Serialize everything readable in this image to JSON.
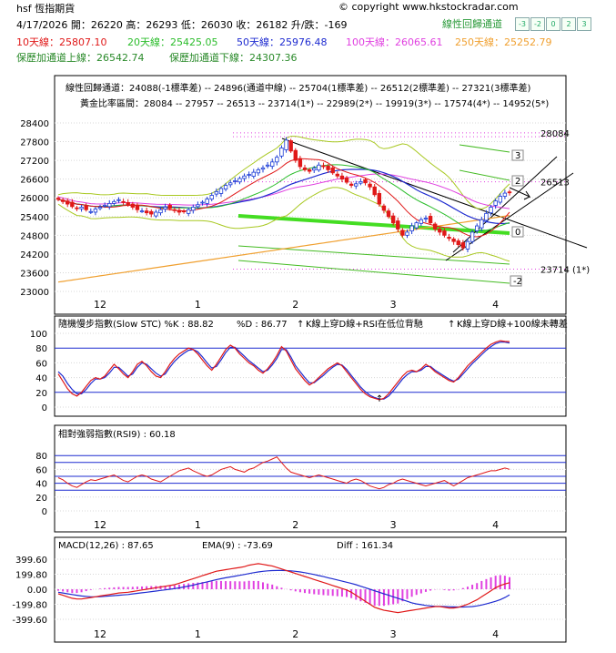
{
  "header": {
    "title": "hsf 恆指期貨",
    "copyright": "© copyright www.hkstockradar.com",
    "channel_label": "線性回歸通道",
    "buttons": [
      "-3",
      "-2",
      "0",
      "2",
      "3"
    ],
    "quote": "4/17/2026 開：26220 高：26293 低：26030 收：26182 升/跌：-169",
    "ma10": "10天線：25807.10",
    "ma20": "20天線：25425.05",
    "ma50": "50天線：25976.48",
    "ma100": "100天線：26065.61",
    "ma250": "250天線：25252.79",
    "upper": "保歷加通道上線：26542.74",
    "lower": "保歷加通道下線：24307.36",
    "regression": "線性回歸通道：24088(-1標準差) -- 24896(通道中線) -- 25704(1標準差) -- 26512(2標準差) -- 27321(3標準差)",
    "golden": "黃金比率區間：28084 -- 27957 -- 26513 -- 23714(1*) -- 22989(2*) -- 19919(3*) -- 17574(4*) -- 14952(5*)"
  },
  "colors": {
    "up": "#1a3bd6",
    "down": "#e01818",
    "ma10": "#e01818",
    "ma20": "#2bbd2b",
    "ma50": "#1e2bd0",
    "ma100": "#e040e0",
    "ma250": "#f0a030",
    "boll": "#a8c820"
  },
  "chart_data": [
    {
      "type": "candlestick",
      "ylim": [
        23000,
        28400
      ],
      "yticks": [
        23000,
        23600,
        24200,
        24800,
        25400,
        26000,
        26600,
        27200,
        27800,
        28400
      ],
      "x_ticks": [
        "12",
        "1",
        "2",
        "3",
        "4"
      ],
      "fib_labels": [
        "28084",
        "26513",
        "23714 (1*)"
      ],
      "channel_labels": [
        "3",
        "2",
        "0",
        "-2"
      ],
      "close": [
        25950,
        25880,
        25800,
        25720,
        25650,
        25700,
        25620,
        25560,
        25640,
        25700,
        25760,
        25820,
        25880,
        25940,
        25870,
        25780,
        25700,
        25620,
        25580,
        25520,
        25480,
        25540,
        25620,
        25700,
        25660,
        25600,
        25540,
        25560,
        25620,
        25700,
        25780,
        25860,
        25960,
        26080,
        26200,
        26300,
        26400,
        26480,
        26550,
        26620,
        26700,
        26750,
        26820,
        26900,
        26960,
        27050,
        27150,
        27300,
        27600,
        27850,
        27500,
        27200,
        27000,
        26900,
        26850,
        26950,
        27050,
        27000,
        26900,
        26800,
        26700,
        26600,
        26500,
        26400,
        26450,
        26520,
        26480,
        26350,
        26100,
        25800,
        25600,
        25400,
        25200,
        25000,
        24800,
        24900,
        25100,
        25200,
        25300,
        25350,
        25200,
        25000,
        24900,
        24800,
        24700,
        24600,
        24500,
        24400,
        24600,
        24900,
        25100,
        25300,
        25500,
        25700,
        25900,
        26050,
        26150,
        26182
      ],
      "indicators": {
        "stc_title": "隨機慢步指數(Slow STC) %K : 88.82",
        "stc_d": "%D : 86.77",
        "stc_note1": "K線上穿D線+RSI在低位背馳",
        "stc_note2": "K線上穿D線+100線未轉差",
        "rsi_title": "相對強弱指數(RSI9) : 60.18",
        "macd_title": "MACD(12,26) : 87.65",
        "ema_title": "EMA(9) : -73.69",
        "diff_title": "Diff : 161.34"
      }
    },
    {
      "type": "line",
      "name": "stc",
      "ylim": [
        0,
        100
      ],
      "yticks": [
        0,
        20,
        40,
        60,
        80,
        100
      ],
      "k": [
        45,
        35,
        25,
        18,
        15,
        20,
        28,
        36,
        40,
        38,
        42,
        50,
        58,
        52,
        45,
        40,
        48,
        58,
        62,
        56,
        48,
        42,
        40,
        48,
        58,
        66,
        72,
        76,
        80,
        78,
        72,
        64,
        56,
        50,
        58,
        68,
        78,
        84,
        80,
        72,
        66,
        60,
        56,
        50,
        46,
        52,
        60,
        70,
        82,
        76,
        64,
        52,
        44,
        36,
        30,
        34,
        40,
        46,
        52,
        56,
        60,
        56,
        48,
        40,
        32,
        24,
        18,
        14,
        12,
        10,
        12,
        18,
        26,
        34,
        42,
        48,
        50,
        48,
        52,
        58,
        54,
        48,
        44,
        40,
        36,
        34,
        40,
        48,
        56,
        62,
        68,
        74,
        80,
        85,
        88,
        90,
        89,
        88.82
      ],
      "d": [
        48,
        42,
        32,
        24,
        18,
        18,
        24,
        32,
        38,
        38,
        40,
        46,
        54,
        54,
        48,
        42,
        45,
        54,
        60,
        58,
        52,
        46,
        42,
        45,
        54,
        62,
        68,
        73,
        77,
        78,
        75,
        68,
        60,
        53,
        55,
        64,
        74,
        81,
        81,
        75,
        69,
        63,
        58,
        53,
        48,
        50,
        57,
        66,
        78,
        78,
        68,
        56,
        48,
        40,
        33,
        33,
        38,
        43,
        49,
        54,
        58,
        57,
        51,
        43,
        35,
        27,
        21,
        16,
        13,
        11,
        11,
        15,
        22,
        30,
        38,
        44,
        48,
        48,
        50,
        55,
        55,
        50,
        46,
        42,
        38,
        35,
        38,
        45,
        52,
        59,
        65,
        71,
        77,
        82,
        86,
        88,
        88,
        86.77
      ]
    },
    {
      "type": "line",
      "name": "rsi",
      "ylim": [
        0,
        100
      ],
      "yticks": [
        0,
        20,
        30,
        40,
        50,
        60,
        70,
        80
      ],
      "values": [
        48,
        45,
        40,
        36,
        34,
        38,
        42,
        45,
        44,
        46,
        48,
        50,
        52,
        48,
        44,
        42,
        46,
        50,
        52,
        50,
        46,
        44,
        42,
        46,
        50,
        54,
        58,
        60,
        62,
        58,
        55,
        52,
        50,
        52,
        56,
        60,
        62,
        64,
        60,
        58,
        56,
        60,
        62,
        66,
        70,
        72,
        75,
        78,
        70,
        62,
        56,
        54,
        52,
        50,
        48,
        50,
        52,
        50,
        48,
        46,
        44,
        42,
        40,
        44,
        46,
        44,
        40,
        36,
        34,
        32,
        34,
        38,
        40,
        44,
        46,
        44,
        42,
        40,
        38,
        36,
        38,
        40,
        42,
        44,
        40,
        36,
        40,
        44,
        48,
        50,
        52,
        54,
        56,
        58,
        58,
        60,
        62,
        60.18
      ]
    },
    {
      "type": "bar",
      "name": "macd",
      "ylim": [
        -399.6,
        399.6
      ],
      "yticks": [
        -399.6,
        -199.8,
        0,
        199.8,
        399.6
      ],
      "ytick_labels": [
        "-399.60",
        "-199.80",
        "0.00",
        "199.80",
        "399.60"
      ],
      "macd": [
        -60,
        -80,
        -100,
        -120,
        -130,
        -130,
        -120,
        -110,
        -100,
        -90,
        -80,
        -70,
        -60,
        -50,
        -45,
        -40,
        -30,
        -20,
        -10,
        0,
        10,
        20,
        30,
        40,
        50,
        60,
        80,
        100,
        120,
        140,
        160,
        180,
        200,
        220,
        240,
        250,
        260,
        270,
        280,
        290,
        300,
        320,
        330,
        340,
        330,
        320,
        310,
        290,
        270,
        250,
        230,
        210,
        190,
        170,
        150,
        130,
        110,
        90,
        70,
        50,
        30,
        10,
        -10,
        -40,
        -80,
        -120,
        -160,
        -200,
        -240,
        -260,
        -280,
        -290,
        -300,
        -310,
        -300,
        -290,
        -280,
        -270,
        -260,
        -250,
        -240,
        -230,
        -230,
        -240,
        -250,
        -250,
        -240,
        -220,
        -200,
        -170,
        -140,
        -100,
        -60,
        -20,
        20,
        50,
        70,
        87.65
      ],
      "ema": [
        -40,
        -50,
        -60,
        -70,
        -80,
        -90,
        -95,
        -100,
        -100,
        -98,
        -95,
        -90,
        -85,
        -80,
        -75,
        -70,
        -62,
        -55,
        -47,
        -40,
        -32,
        -24,
        -16,
        -8,
        0,
        8,
        18,
        30,
        42,
        55,
        70,
        84,
        98,
        113,
        128,
        140,
        152,
        163,
        174,
        185,
        196,
        208,
        220,
        230,
        238,
        244,
        248,
        250,
        250,
        248,
        244,
        238,
        230,
        220,
        208,
        196,
        182,
        168,
        153,
        138,
        123,
        108,
        93,
        78,
        60,
        40,
        20,
        0,
        -20,
        -40,
        -60,
        -80,
        -100,
        -120,
        -140,
        -160,
        -180,
        -195,
        -205,
        -215,
        -222,
        -226,
        -228,
        -230,
        -232,
        -235,
        -236,
        -236,
        -234,
        -230,
        -222,
        -210,
        -195,
        -178,
        -160,
        -138,
        -110,
        -73.69
      ]
    }
  ]
}
